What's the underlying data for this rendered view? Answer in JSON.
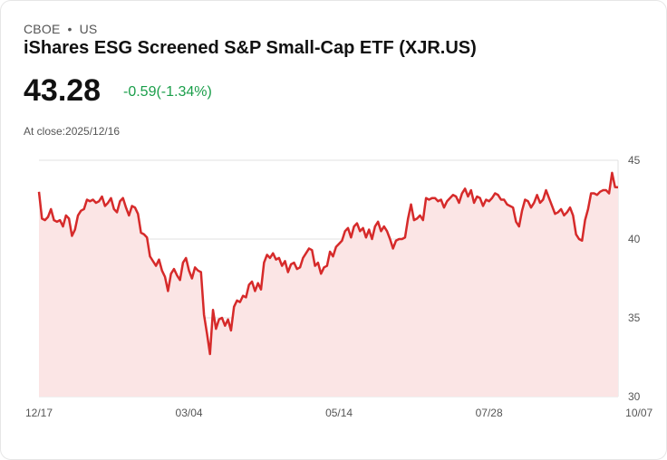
{
  "header": {
    "exchange": "CBOE",
    "region": "US",
    "title": "iShares ESG Screened S&P Small-Cap ETF (XJR.US)",
    "price": "43.28",
    "change": "-0.59(-1.34%)",
    "close_label": "At close:",
    "close_date": "2025/12/16"
  },
  "colors": {
    "line": "#d62a2a",
    "fill": "#fbe5e5",
    "grid": "#e0e0e0",
    "change": "#1a9e4a"
  },
  "chart_data": {
    "type": "area",
    "title": "iShares ESG Screened S&P Small-Cap ETF (XJR.US)",
    "xlabel": "",
    "ylabel": "",
    "ylim": [
      30,
      45
    ],
    "yticks": [
      45,
      40,
      35,
      30
    ],
    "x_tick_labels": [
      "12/17",
      "03/04",
      "05/14",
      "07/28",
      "10/07"
    ],
    "x_tick_index": [
      0,
      50,
      100,
      150,
      200
    ],
    "series": [
      {
        "name": "XJR.US",
        "values": [
          43.0,
          41.3,
          41.2,
          41.4,
          41.9,
          41.2,
          41.1,
          41.2,
          40.8,
          41.5,
          41.3,
          40.2,
          40.6,
          41.5,
          41.8,
          41.9,
          42.5,
          42.4,
          42.5,
          42.3,
          42.4,
          42.7,
          42.1,
          42.3,
          42.6,
          41.9,
          41.7,
          42.4,
          42.6,
          42.0,
          41.5,
          42.1,
          42.0,
          41.6,
          40.4,
          40.3,
          40.1,
          38.9,
          38.6,
          38.3,
          38.7,
          38.0,
          37.6,
          36.7,
          37.8,
          38.1,
          37.7,
          37.4,
          38.5,
          38.8,
          38.0,
          37.5,
          38.2,
          38.0,
          37.9,
          35.2,
          34.0,
          32.7,
          35.5,
          34.3,
          34.9,
          35.0,
          34.5,
          34.9,
          34.2,
          35.7,
          36.1,
          36.0,
          36.4,
          36.3,
          37.1,
          37.3,
          36.7,
          37.2,
          36.8,
          38.5,
          39.0,
          38.8,
          39.1,
          38.7,
          38.8,
          38.3,
          38.6,
          37.9,
          38.4,
          38.5,
          38.1,
          38.2,
          38.8,
          39.1,
          39.4,
          39.3,
          38.3,
          38.5,
          37.8,
          38.2,
          38.3,
          39.2,
          38.9,
          39.5,
          39.7,
          39.9,
          40.5,
          40.7,
          40.1,
          40.8,
          41.0,
          40.5,
          40.7,
          40.1,
          40.6,
          40.0,
          40.8,
          41.1,
          40.5,
          40.8,
          40.5,
          40.0,
          39.4,
          39.9,
          40.0,
          40.0,
          40.1,
          41.3,
          42.2,
          41.2,
          41.3,
          41.5,
          41.2,
          42.6,
          42.5,
          42.6,
          42.6,
          42.4,
          42.5,
          42.0,
          42.4,
          42.6,
          42.8,
          42.7,
          42.3,
          42.9,
          43.2,
          42.7,
          43.1,
          42.3,
          42.7,
          42.6,
          42.1,
          42.5,
          42.4,
          42.6,
          42.9,
          42.8,
          42.5,
          42.5,
          42.2,
          42.1,
          42.0,
          41.1,
          40.8,
          41.8,
          42.5,
          42.4,
          42.0,
          42.3,
          42.8,
          42.3,
          42.5,
          43.1,
          42.6,
          42.1,
          41.6,
          41.7,
          41.9,
          41.5,
          41.7,
          42.0,
          41.5,
          40.3,
          40.0,
          39.9,
          41.2,
          41.9,
          42.9,
          42.9,
          42.8,
          43.0,
          43.1,
          43.1,
          42.9,
          44.2,
          43.3,
          43.28
        ]
      }
    ]
  }
}
